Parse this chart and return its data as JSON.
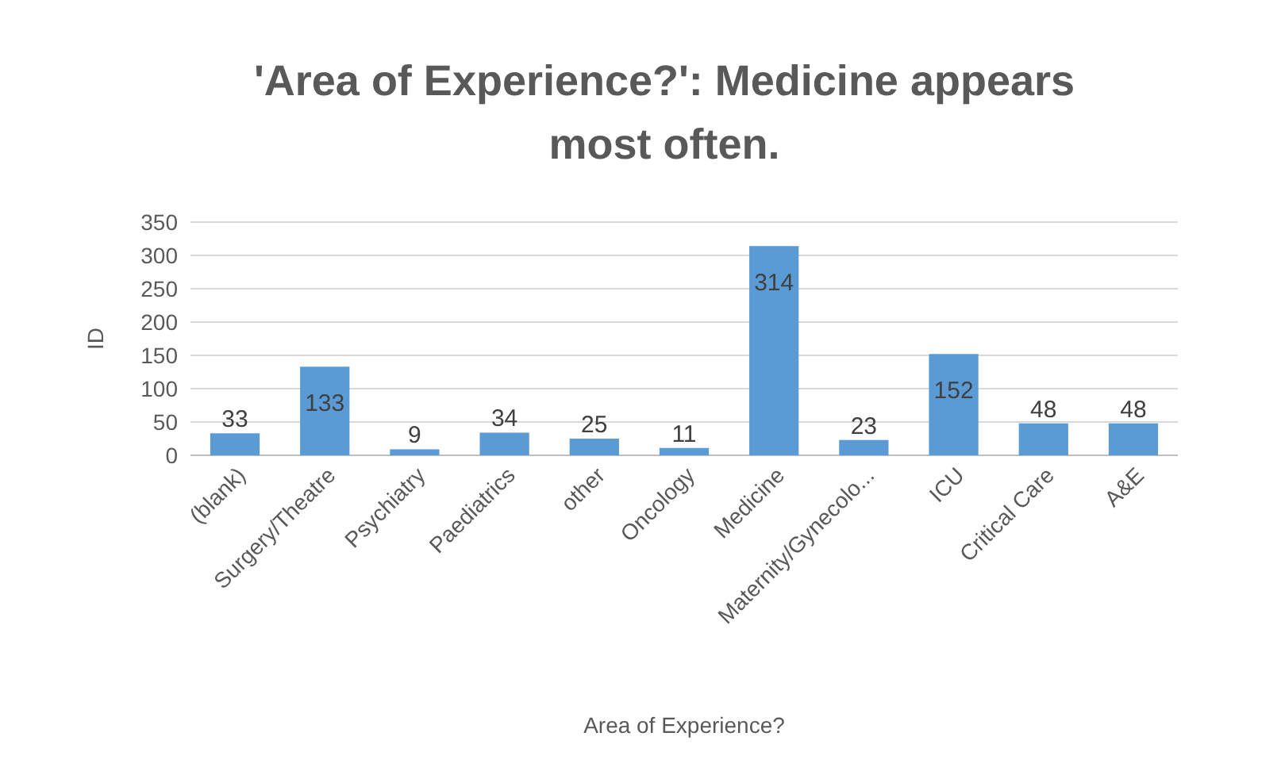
{
  "chart_data": {
    "type": "bar",
    "title": "'Area of Experience?': Medicine appears most often.",
    "xlabel": "Area of Experience?",
    "ylabel": "ID",
    "categories": [
      "(blank)",
      "Surgery/Theatre",
      "Psychiatry",
      "Paediatrics",
      "other",
      "Oncology",
      "Medicine",
      "Maternity/Gynecolo...",
      "ICU",
      "Critical Care",
      "A&E"
    ],
    "values": [
      33,
      133,
      9,
      34,
      25,
      11,
      314,
      23,
      152,
      48,
      48
    ],
    "color": "#5b9bd5",
    "ylim": [
      0,
      350
    ],
    "yticks": [
      0,
      50,
      100,
      150,
      200,
      250,
      300,
      350
    ],
    "grid": "y",
    "data_labels": true
  }
}
